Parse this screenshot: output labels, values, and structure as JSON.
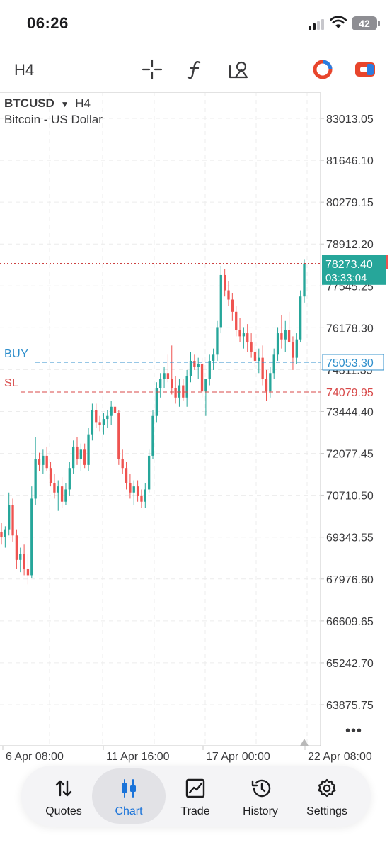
{
  "status": {
    "time": "06:26",
    "battery": "42"
  },
  "toolbar": {
    "timeframe": "H4",
    "icons": [
      "crosshair-icon",
      "function-icon",
      "objects-icon",
      "trade-logo-icon",
      "switch-icon"
    ]
  },
  "chart": {
    "symbol": "BTCUSD",
    "timeframe": "H4",
    "description": "Bitcoin - US Dollar",
    "buy_label": "BUY",
    "sl_label": "SL",
    "current_price": "78273.40",
    "countdown": "03:33:04",
    "buy_price": "75053.30",
    "sl_price": "74079.95",
    "price_ticks": [
      "83013.05",
      "81646.10",
      "80279.15",
      "78912.20",
      "77545.25",
      "76178.30",
      "74811.35",
      "73444.40",
      "72077.45",
      "70710.50",
      "69343.55",
      "67976.60",
      "66609.65",
      "65242.70",
      "63875.75"
    ],
    "date_ticks": [
      "6 Apr 08:00",
      "11 Apr 16:00",
      "17 Apr 00:00",
      "22 Apr 08:00"
    ],
    "colors": {
      "bull": "#26a69a",
      "bear": "#ef5350",
      "buy_line": "#2f8fcc",
      "sl_line": "#d84a4a",
      "price_line": "#c62828"
    }
  },
  "chart_data": {
    "type": "candlestick",
    "symbol": "BTCUSD",
    "timeframe": "H4",
    "ylim": [
      63200,
      83700
    ],
    "candles": [
      {
        "o": 69500,
        "h": 69800,
        "l": 69100,
        "c": 69350
      },
      {
        "o": 69350,
        "h": 69700,
        "l": 69000,
        "c": 69600
      },
      {
        "o": 69600,
        "h": 70800,
        "l": 69400,
        "c": 70400
      },
      {
        "o": 70400,
        "h": 70600,
        "l": 69200,
        "c": 69400
      },
      {
        "o": 69400,
        "h": 69600,
        "l": 68300,
        "c": 68600
      },
      {
        "o": 68600,
        "h": 69000,
        "l": 68200,
        "c": 68800
      },
      {
        "o": 68800,
        "h": 69100,
        "l": 68100,
        "c": 68300
      },
      {
        "o": 68300,
        "h": 68800,
        "l": 67800,
        "c": 68100
      },
      {
        "o": 68100,
        "h": 71000,
        "l": 68000,
        "c": 70600
      },
      {
        "o": 70600,
        "h": 72600,
        "l": 70400,
        "c": 71900
      },
      {
        "o": 71900,
        "h": 72100,
        "l": 71500,
        "c": 71700
      },
      {
        "o": 71700,
        "h": 72200,
        "l": 71400,
        "c": 72000
      },
      {
        "o": 72000,
        "h": 72300,
        "l": 71500,
        "c": 71600
      },
      {
        "o": 71600,
        "h": 71800,
        "l": 71000,
        "c": 71100
      },
      {
        "o": 71100,
        "h": 71400,
        "l": 70600,
        "c": 70800
      },
      {
        "o": 70800,
        "h": 71200,
        "l": 70200,
        "c": 71000
      },
      {
        "o": 71000,
        "h": 71300,
        "l": 70300,
        "c": 70500
      },
      {
        "o": 70500,
        "h": 71100,
        "l": 70400,
        "c": 70900
      },
      {
        "o": 70900,
        "h": 71800,
        "l": 70700,
        "c": 71600
      },
      {
        "o": 71600,
        "h": 72500,
        "l": 71400,
        "c": 72300
      },
      {
        "o": 72300,
        "h": 72600,
        "l": 71700,
        "c": 71900
      },
      {
        "o": 71900,
        "h": 72400,
        "l": 71500,
        "c": 72200
      },
      {
        "o": 72200,
        "h": 72400,
        "l": 71600,
        "c": 71700
      },
      {
        "o": 71700,
        "h": 72900,
        "l": 71500,
        "c": 72700
      },
      {
        "o": 72700,
        "h": 73700,
        "l": 72500,
        "c": 73500
      },
      {
        "o": 73500,
        "h": 73700,
        "l": 72900,
        "c": 73100
      },
      {
        "o": 73100,
        "h": 73300,
        "l": 72800,
        "c": 73000
      },
      {
        "o": 73000,
        "h": 73400,
        "l": 72700,
        "c": 73200
      },
      {
        "o": 73200,
        "h": 73500,
        "l": 72900,
        "c": 73300
      },
      {
        "o": 73300,
        "h": 73800,
        "l": 73000,
        "c": 73600
      },
      {
        "o": 73600,
        "h": 73900,
        "l": 73200,
        "c": 73400
      },
      {
        "o": 73400,
        "h": 73500,
        "l": 71700,
        "c": 71900
      },
      {
        "o": 71900,
        "h": 72200,
        "l": 71400,
        "c": 71600
      },
      {
        "o": 71600,
        "h": 71800,
        "l": 70900,
        "c": 71100
      },
      {
        "o": 71100,
        "h": 71400,
        "l": 70600,
        "c": 70800
      },
      {
        "o": 70800,
        "h": 71200,
        "l": 70400,
        "c": 71000
      },
      {
        "o": 71000,
        "h": 71200,
        "l": 70500,
        "c": 70700
      },
      {
        "o": 70700,
        "h": 70900,
        "l": 70300,
        "c": 70500
      },
      {
        "o": 70500,
        "h": 71100,
        "l": 70300,
        "c": 70900
      },
      {
        "o": 70900,
        "h": 72200,
        "l": 70800,
        "c": 72000
      },
      {
        "o": 72000,
        "h": 73500,
        "l": 71900,
        "c": 73300
      },
      {
        "o": 73300,
        "h": 74400,
        "l": 73100,
        "c": 74200
      },
      {
        "o": 74200,
        "h": 74700,
        "l": 73900,
        "c": 74500
      },
      {
        "o": 74500,
        "h": 74900,
        "l": 74200,
        "c": 74700
      },
      {
        "o": 74700,
        "h": 75300,
        "l": 74400,
        "c": 74500
      },
      {
        "o": 74500,
        "h": 75600,
        "l": 74000,
        "c": 74200
      },
      {
        "o": 74200,
        "h": 74600,
        "l": 73700,
        "c": 73900
      },
      {
        "o": 73900,
        "h": 74500,
        "l": 73600,
        "c": 74300
      },
      {
        "o": 74300,
        "h": 74500,
        "l": 73800,
        "c": 73900
      },
      {
        "o": 73900,
        "h": 74800,
        "l": 73600,
        "c": 74600
      },
      {
        "o": 74600,
        "h": 75400,
        "l": 74400,
        "c": 75100
      },
      {
        "o": 75100,
        "h": 75300,
        "l": 74800,
        "c": 74900
      },
      {
        "o": 74900,
        "h": 75200,
        "l": 74500,
        "c": 75000
      },
      {
        "o": 75000,
        "h": 75200,
        "l": 73900,
        "c": 74100
      },
      {
        "o": 74100,
        "h": 74400,
        "l": 73300,
        "c": 74500
      },
      {
        "o": 74500,
        "h": 75300,
        "l": 74300,
        "c": 75100
      },
      {
        "o": 75100,
        "h": 75500,
        "l": 74800,
        "c": 75300
      },
      {
        "o": 75300,
        "h": 76400,
        "l": 75100,
        "c": 76200
      },
      {
        "o": 76200,
        "h": 78200,
        "l": 76000,
        "c": 77900
      },
      {
        "o": 77900,
        "h": 78100,
        "l": 77200,
        "c": 77400
      },
      {
        "o": 77400,
        "h": 77700,
        "l": 76900,
        "c": 77100
      },
      {
        "o": 77100,
        "h": 77300,
        "l": 76400,
        "c": 76700
      },
      {
        "o": 76700,
        "h": 76900,
        "l": 75900,
        "c": 76100
      },
      {
        "o": 76100,
        "h": 76500,
        "l": 75700,
        "c": 75900
      },
      {
        "o": 75900,
        "h": 76200,
        "l": 75500,
        "c": 76000
      },
      {
        "o": 76000,
        "h": 76300,
        "l": 75400,
        "c": 75700
      },
      {
        "o": 75700,
        "h": 76000,
        "l": 75200,
        "c": 75400
      },
      {
        "o": 75400,
        "h": 75700,
        "l": 74900,
        "c": 75100
      },
      {
        "o": 75100,
        "h": 75500,
        "l": 74700,
        "c": 75200
      },
      {
        "o": 75200,
        "h": 75600,
        "l": 74300,
        "c": 74500
      },
      {
        "o": 74500,
        "h": 74800,
        "l": 73800,
        "c": 74100
      },
      {
        "o": 74100,
        "h": 74900,
        "l": 73900,
        "c": 74700
      },
      {
        "o": 74700,
        "h": 75500,
        "l": 74500,
        "c": 75300
      },
      {
        "o": 75300,
        "h": 76200,
        "l": 75100,
        "c": 76000
      },
      {
        "o": 76000,
        "h": 76600,
        "l": 75500,
        "c": 75800
      },
      {
        "o": 75800,
        "h": 76400,
        "l": 75400,
        "c": 76100
      },
      {
        "o": 76100,
        "h": 76700,
        "l": 75800,
        "c": 75700
      },
      {
        "o": 75700,
        "h": 75900,
        "l": 74800,
        "c": 75200
      },
      {
        "o": 75200,
        "h": 76000,
        "l": 75000,
        "c": 75800
      },
      {
        "o": 75800,
        "h": 77400,
        "l": 75700,
        "c": 77200
      },
      {
        "o": 77200,
        "h": 78400,
        "l": 77000,
        "c": 78273.4
      }
    ],
    "price_lines": {
      "current": 78273.4,
      "buy": 75053.3,
      "sl": 74079.95
    },
    "x_tick_labels": [
      "6 Apr 08:00",
      "11 Apr 16:00",
      "17 Apr 00:00",
      "22 Apr 08:00"
    ],
    "y_tick_labels": [
      "83013.05",
      "81646.10",
      "80279.15",
      "78912.20",
      "77545.25",
      "76178.30",
      "74811.35",
      "73444.40",
      "72077.45",
      "70710.50",
      "69343.55",
      "67976.60",
      "66609.65",
      "65242.70",
      "63875.75"
    ]
  },
  "nav": {
    "items": [
      {
        "label": "Quotes",
        "icon": "quotes-icon"
      },
      {
        "label": "Chart",
        "icon": "chart-icon"
      },
      {
        "label": "Trade",
        "icon": "trade-icon"
      },
      {
        "label": "History",
        "icon": "history-icon"
      },
      {
        "label": "Settings",
        "icon": "settings-icon"
      }
    ],
    "active": "Chart"
  }
}
